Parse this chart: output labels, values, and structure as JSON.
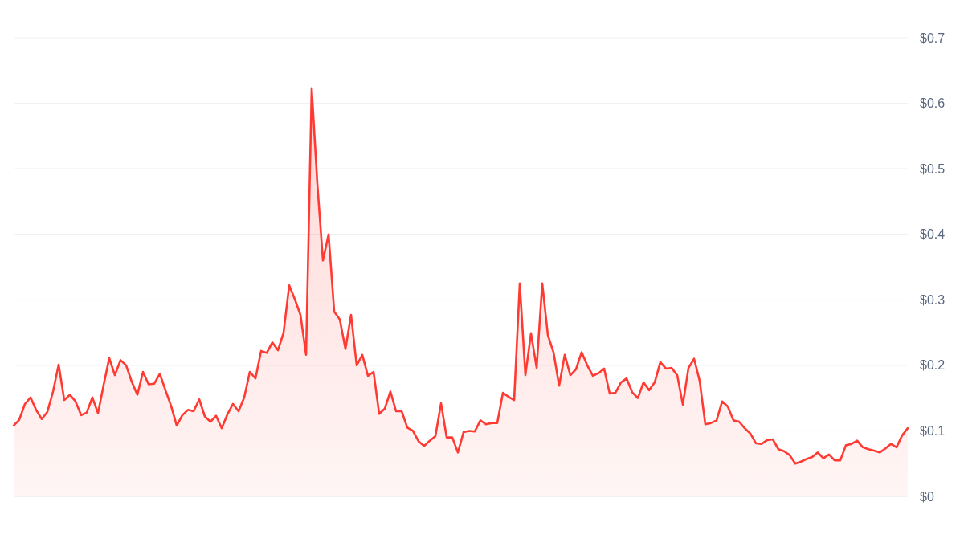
{
  "chart_data": {
    "type": "area",
    "color": "#ff3a33",
    "categories": [
      null,
      null,
      null,
      null,
      null,
      null,
      null,
      null,
      null,
      null,
      null,
      null,
      null,
      null,
      null,
      null,
      null,
      null,
      null,
      null,
      null,
      null,
      null,
      null,
      null,
      null,
      null,
      null,
      null,
      null,
      null,
      null,
      null,
      null,
      null,
      null,
      null,
      null,
      null,
      null,
      null,
      null,
      null,
      null,
      null,
      null,
      null,
      null,
      null,
      null,
      null,
      null,
      null,
      null,
      null,
      null,
      null,
      null,
      null,
      null,
      null,
      null,
      null,
      null,
      null,
      null,
      null,
      null,
      null,
      null,
      null,
      null,
      null,
      null,
      null,
      null,
      null,
      null,
      null,
      null,
      null,
      null,
      null,
      null,
      null,
      null,
      null,
      null,
      null,
      null,
      null,
      null,
      null,
      null,
      null,
      null,
      null,
      null,
      null,
      null,
      null,
      null,
      null,
      null,
      null,
      null,
      null,
      null,
      null,
      null,
      null,
      null,
      null,
      null,
      null,
      null,
      null,
      null,
      null,
      null,
      null,
      null,
      null,
      null,
      null,
      null,
      null,
      null,
      null,
      null,
      null,
      null,
      null,
      null,
      null,
      null,
      null,
      null,
      null,
      null,
      null,
      null,
      null,
      null,
      null,
      null,
      null,
      null,
      null,
      null,
      null,
      null,
      null,
      null,
      null,
      null,
      null,
      null,
      null,
      null
    ],
    "values": [
      0.108,
      0.117,
      0.141,
      0.151,
      0.132,
      0.118,
      0.129,
      0.16,
      0.201,
      0.147,
      0.155,
      0.145,
      0.124,
      0.128,
      0.151,
      0.127,
      0.17,
      0.211,
      0.185,
      0.208,
      0.2,
      0.175,
      0.155,
      0.19,
      0.171,
      0.172,
      0.187,
      0.162,
      0.138,
      0.108,
      0.124,
      0.132,
      0.13,
      0.148,
      0.122,
      0.114,
      0.123,
      0.104,
      0.125,
      0.141,
      0.13,
      0.151,
      0.19,
      0.18,
      0.222,
      0.219,
      0.235,
      0.223,
      0.25,
      0.322,
      0.301,
      0.277,
      0.216,
      0.623,
      0.478,
      0.36,
      0.4,
      0.282,
      0.27,
      0.225,
      0.277,
      0.2,
      0.216,
      0.184,
      0.19,
      0.126,
      0.134,
      0.16,
      0.13,
      0.13,
      0.105,
      0.1,
      0.084,
      0.077,
      0.085,
      0.092,
      0.142,
      0.09,
      0.09,
      0.067,
      0.098,
      0.1,
      0.099,
      0.116,
      0.11,
      0.112,
      0.112,
      0.158,
      0.152,
      0.147,
      0.325,
      0.185,
      0.249,
      0.196,
      0.325,
      0.246,
      0.22,
      0.169,
      0.216,
      0.185,
      0.194,
      0.22,
      0.2,
      0.184,
      0.188,
      0.195,
      0.157,
      0.158,
      0.174,
      0.18,
      0.159,
      0.15,
      0.174,
      0.162,
      0.174,
      0.205,
      0.195,
      0.196,
      0.185,
      0.14,
      0.196,
      0.21,
      0.176,
      0.11,
      0.112,
      0.116,
      0.145,
      0.137,
      0.116,
      0.114,
      0.104,
      0.096,
      0.081,
      0.08,
      0.086,
      0.087,
      0.072,
      0.069,
      0.063,
      0.05,
      0.053,
      0.057,
      0.06,
      0.067,
      0.058,
      0.064,
      0.055,
      0.055,
      0.078,
      0.08,
      0.085,
      0.075,
      0.072,
      0.07,
      0.067,
      0.073,
      0.08,
      0.075,
      0.093,
      0.104
    ],
    "ylim": [
      0,
      0.7
    ],
    "yticks": [
      {
        "value": 0,
        "label": "$0"
      },
      {
        "value": 0.1,
        "label": "$0.1"
      },
      {
        "value": 0.2,
        "label": "$0.2"
      },
      {
        "value": 0.3,
        "label": "$0.3"
      },
      {
        "value": 0.4,
        "label": "$0.4"
      },
      {
        "value": 0.5,
        "label": "$0.5"
      },
      {
        "value": 0.6,
        "label": "$0.6"
      },
      {
        "value": 0.7,
        "label": "$0.7"
      }
    ],
    "grid": "y"
  }
}
